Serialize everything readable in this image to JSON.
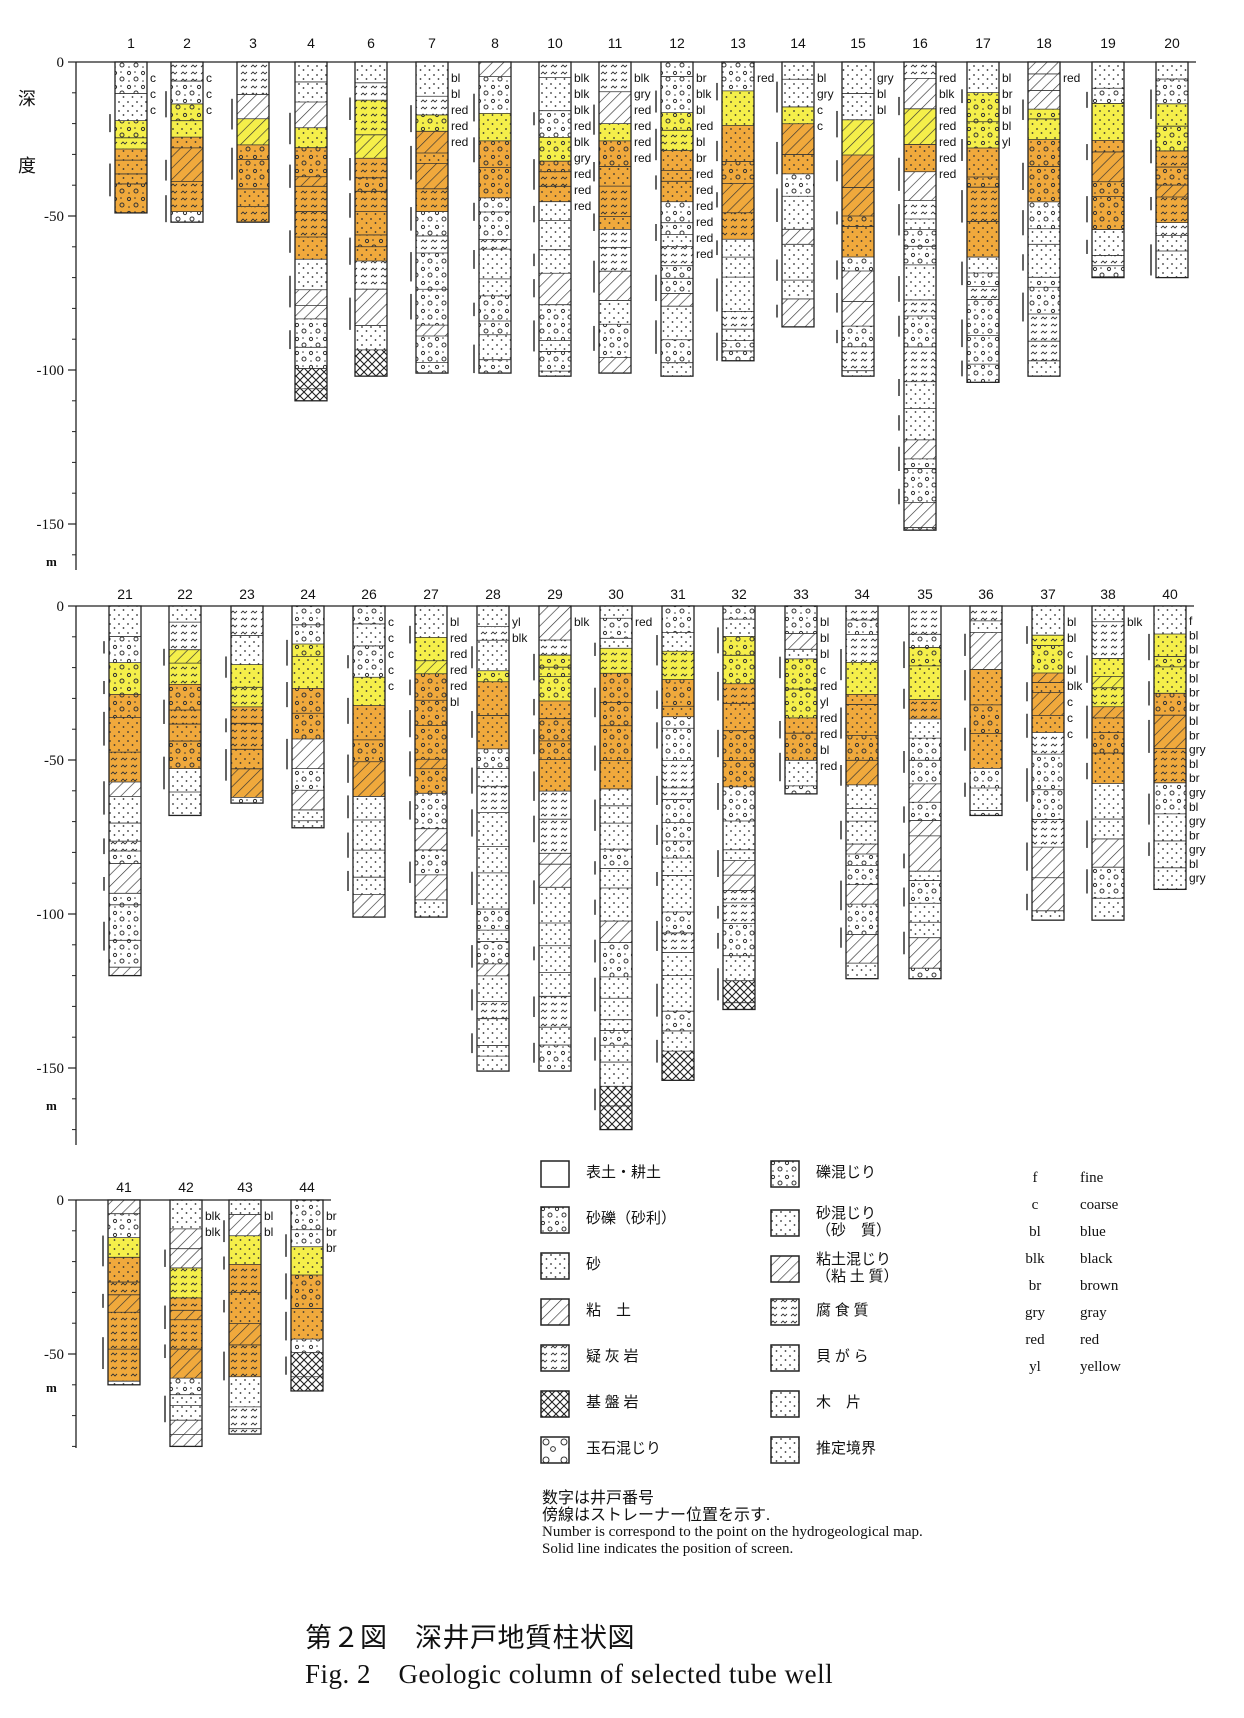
{
  "panel1_wells": [
    "1",
    "2",
    "3",
    "4",
    "6",
    "7",
    "8",
    "10",
    "11",
    "12",
    "13",
    "14",
    "15",
    "16",
    "17",
    "18",
    "19",
    "20"
  ],
  "panel2_wells": [
    "21",
    "22",
    "23",
    "24",
    "26",
    "27",
    "28",
    "29",
    "30",
    "31",
    "32",
    "33",
    "34",
    "35",
    "36",
    "37",
    "38",
    "40"
  ],
  "panel3_wells": [
    "41",
    "42",
    "43",
    "44"
  ],
  "axis": {
    "depth_label_1": "深",
    "depth_label_2": "度",
    "unit": "m",
    "ticks_p1": [
      "0",
      "-50",
      "-100",
      "-150"
    ],
    "ticks_p2": [
      "0",
      "-50",
      "-100",
      "-150"
    ],
    "ticks_p3": [
      "0",
      "-50"
    ]
  },
  "well_depths": {
    "1": 49,
    "2": 52,
    "3": 52,
    "4": 110,
    "6": 102,
    "7": 101,
    "8": 101,
    "10": 102,
    "11": 101,
    "12": 102,
    "13": 97,
    "14": 86,
    "15": 102,
    "16": 152,
    "17": 104,
    "18": 102,
    "19": 70,
    "20": 70,
    "21": 120,
    "22": 68,
    "23": 64,
    "24": 72,
    "26": 101,
    "27": 101,
    "28": 151,
    "29": 151,
    "30": 170,
    "31": 154,
    "32": 131,
    "33": 61,
    "34": 121,
    "35": 121,
    "36": 68,
    "37": 102,
    "38": 102,
    "40": 92,
    "41": 60,
    "42": 80,
    "43": 76,
    "44": 62
  },
  "colour_annotations": {
    "1": [
      "c",
      "c",
      "c"
    ],
    "2": [
      "c",
      "c",
      "c"
    ],
    "7": [
      "bl",
      "bl",
      "red",
      "red",
      "red"
    ],
    "10": [
      "blk",
      "blk",
      "blk",
      "red",
      "blk",
      "gry",
      "red",
      "red",
      "red"
    ],
    "11": [
      "blk",
      "gry",
      "red",
      "red",
      "red",
      "red"
    ],
    "12": [
      "br",
      "blk",
      "bl",
      "red",
      "bl",
      "br",
      "red",
      "red",
      "red",
      "red",
      "red",
      "red"
    ],
    "13": [
      "red"
    ],
    "14": [
      "bl",
      "gry",
      "c",
      "c"
    ],
    "15": [
      "gry",
      "bl",
      "bl"
    ],
    "16": [
      "red",
      "blk",
      "red",
      "red",
      "red",
      "red",
      "red"
    ],
    "17": [
      "bl",
      "br",
      "bl",
      "bl",
      "yl"
    ],
    "18": [
      "red"
    ],
    "26": [
      "c",
      "c",
      "c",
      "c",
      "c"
    ],
    "27": [
      "bl",
      "red",
      "red",
      "red",
      "red",
      "bl"
    ],
    "28": [
      "yl",
      "blk"
    ],
    "29": [
      "blk"
    ],
    "30": [
      "red"
    ],
    "33": [
      "bl",
      "bl",
      "bl",
      "c",
      "red",
      "yl",
      "red",
      "red",
      "bl",
      "red"
    ],
    "37": [
      "bl",
      "bl",
      "c",
      "bl",
      "blk",
      "c",
      "c",
      "c"
    ],
    "38": [
      "blk"
    ],
    "40": [
      "f",
      "bl",
      "bl",
      "br",
      "bl",
      "br",
      "br",
      "bl",
      "br",
      "gry",
      "bl",
      "br",
      "gry",
      "bl",
      "gry",
      "br",
      "gry",
      "bl",
      "gry"
    ],
    "42": [
      "blk",
      "blk"
    ],
    "43": [
      "bl",
      "bl"
    ],
    "44": [
      "br",
      "br",
      "br"
    ]
  },
  "legend": [
    {
      "name": "topsoil",
      "label": "表土・耕土"
    },
    {
      "name": "sand-gravel",
      "label": "砂礫（砂利）"
    },
    {
      "name": "sand",
      "label": "砂"
    },
    {
      "name": "clay",
      "label": "粘　土"
    },
    {
      "name": "tuff",
      "label": "疑 灰 岩"
    },
    {
      "name": "bedrock",
      "label": "基 盤 岩"
    },
    {
      "name": "boulder",
      "label": "玉石混じり"
    },
    {
      "name": "gravelly",
      "label": "礫混じり"
    },
    {
      "name": "sandy",
      "label": "砂混じり\n（砂　質）"
    },
    {
      "name": "clayey",
      "label": "粘土混じり\n（粘 土 質）"
    },
    {
      "name": "humus",
      "label": "腐 食 質"
    },
    {
      "name": "shell",
      "label": "貝 が ら"
    },
    {
      "name": "wood",
      "label": "木　片"
    },
    {
      "name": "boundary",
      "label": "推定境界"
    }
  ],
  "abbreviations": [
    {
      "k": "f",
      "v": "fine"
    },
    {
      "k": "c",
      "v": "coarse"
    },
    {
      "k": "bl",
      "v": "blue"
    },
    {
      "k": "blk",
      "v": "black"
    },
    {
      "k": "br",
      "v": "brown"
    },
    {
      "k": "gry",
      "v": "gray"
    },
    {
      "k": "red",
      "v": "red"
    },
    {
      "k": "yl",
      "v": "yellow"
    }
  ],
  "notes": {
    "jp1": "数字は井戸番号",
    "jp2": "傍線はストレーナー位置を示す.",
    "en1": "Number is correspond to the point on the hydrogeological map.",
    "en2": "Solid line indicates the position of screen."
  },
  "caption": {
    "jp": "第２図　深井戸地質柱状図",
    "en": "Fig. 2　Geologic column of selected tube well"
  },
  "colors": {
    "aquifer_yellow": "#f5ef4a",
    "aquifer_orange": "#f0a93c",
    "ink": "#222222"
  }
}
